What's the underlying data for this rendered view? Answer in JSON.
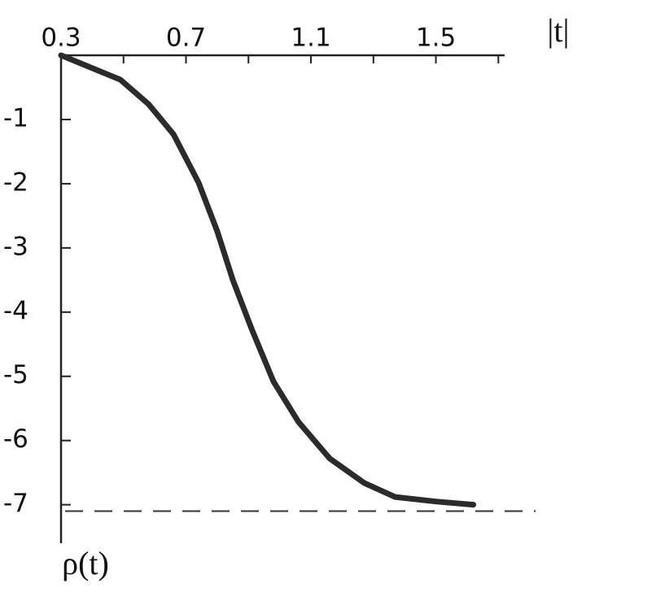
{
  "chart_data": {
    "type": "line",
    "x_axis_label": "|t|",
    "y_axis_label": "ρ(t)",
    "x": [
      0.3,
      0.49,
      0.58,
      0.66,
      0.74,
      0.8,
      0.85,
      0.91,
      0.98,
      1.06,
      1.16,
      1.27,
      1.37,
      1.5,
      1.62
    ],
    "series": [
      {
        "color": "#2b2b2b",
        "values": [
          0,
          -0.38,
          -0.76,
          -1.23,
          -1.98,
          -2.74,
          -3.5,
          -4.26,
          -5.08,
          -5.71,
          -6.28,
          -6.66,
          -6.88,
          -6.95,
          -7.0
        ]
      }
    ],
    "asymptote": -7.1,
    "xlim": [
      0.3,
      1.72
    ],
    "ylim": [
      -7.6,
      0
    ],
    "xticks": [
      0.3,
      0.7,
      1.1,
      1.5
    ],
    "xminor_ticks": [
      0.5,
      0.9,
      1.3,
      1.7
    ],
    "yticks": [
      -1,
      -2,
      -3,
      -4,
      -5,
      -6,
      -7
    ],
    "x_axis_position": "top",
    "y_axis_inverted": true
  }
}
